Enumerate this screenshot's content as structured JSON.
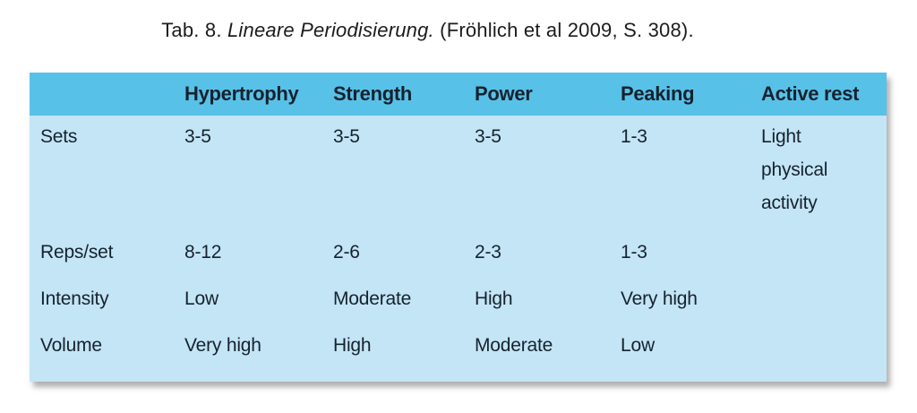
{
  "caption": {
    "prefix": "Tab. 8. ",
    "italic": "Lineare Periodisierung.",
    "suffix": " (Fröhlich et al 2009, S. 308)."
  },
  "table": {
    "columns": [
      "",
      "Hypertrophy",
      "Strength",
      "Power",
      "Peaking",
      "Active rest"
    ],
    "rows": [
      {
        "label": "Sets",
        "values": [
          "3-5",
          "3-5",
          "3-5",
          "1-3",
          "Light physical activity"
        ]
      },
      {
        "label": "Reps/set",
        "values": [
          "8-12",
          "2-6",
          "2-3",
          "1-3",
          ""
        ]
      },
      {
        "label": "Intensity",
        "values": [
          "Low",
          "Moderate",
          "High",
          "Very high",
          ""
        ]
      },
      {
        "label": "Volume",
        "values": [
          "Very high",
          "High",
          "Moderate",
          "Low",
          ""
        ]
      }
    ],
    "colors": {
      "header_bg": "#58c1e8",
      "body_bg": "#c3e5f6",
      "text": "#16222e"
    }
  }
}
